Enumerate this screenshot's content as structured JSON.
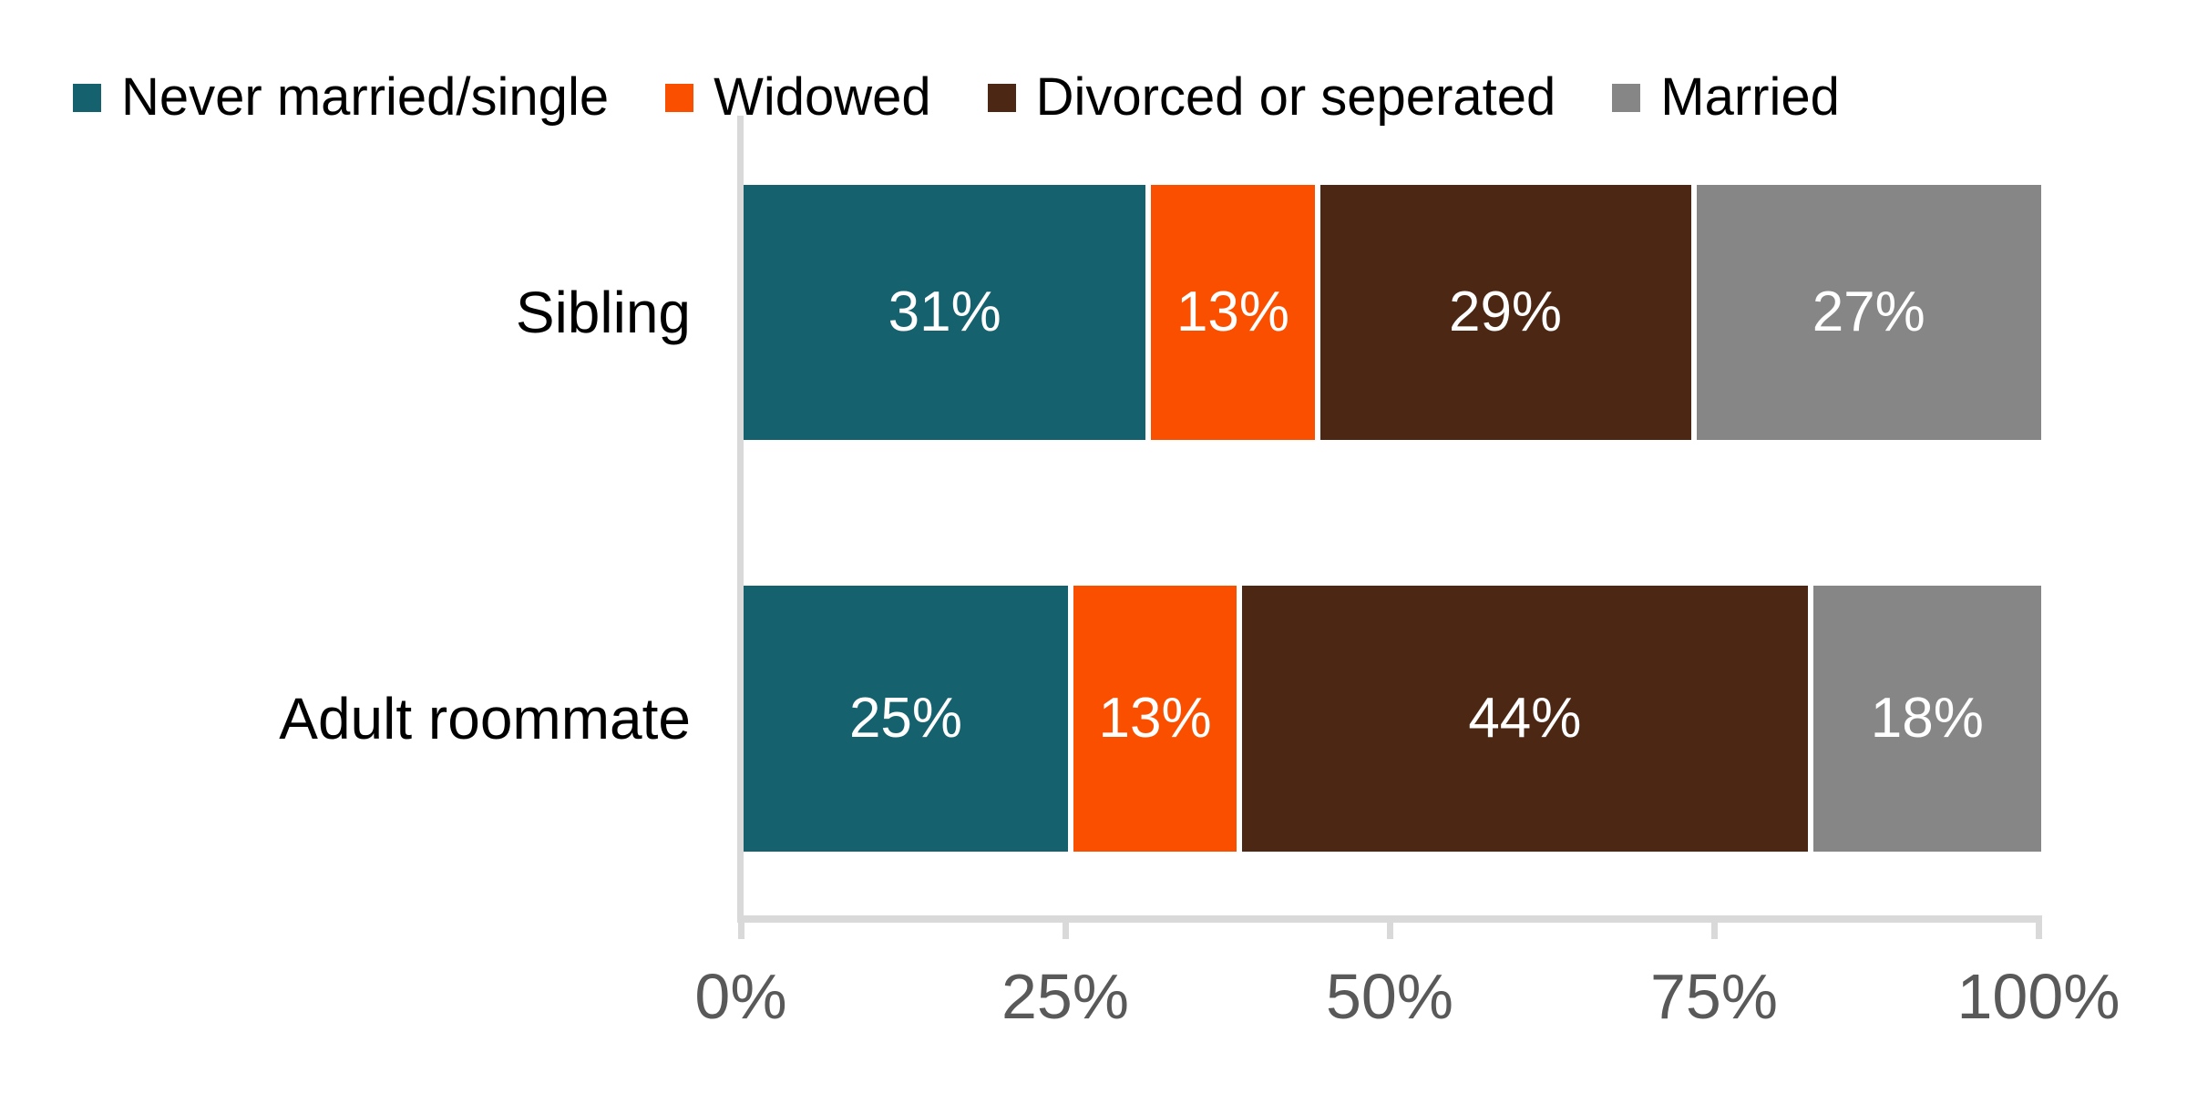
{
  "chart_data": {
    "type": "bar",
    "orientation": "horizontal-stacked",
    "title": "",
    "categories": [
      "Sibling",
      "Adult roommate"
    ],
    "series": [
      {
        "name": "Never married/single",
        "color": "#15616D",
        "values": [
          31,
          25
        ]
      },
      {
        "name": "Widowed",
        "color": "#FB4F00",
        "values": [
          13,
          13
        ]
      },
      {
        "name": "Divorced or seperated",
        "color": "#4C2814",
        "values": [
          29,
          44
        ]
      },
      {
        "name": "Married",
        "color": "#868686",
        "values": [
          27,
          18
        ]
      }
    ],
    "value_labels": [
      [
        "31%",
        "13%",
        "29%",
        "27%"
      ],
      [
        "25%",
        "13%",
        "44%",
        "18%"
      ]
    ],
    "x_ticks": [
      "0%",
      "25%",
      "50%",
      "75%",
      "100%"
    ],
    "xlim": [
      0,
      100
    ],
    "legend_position": "top",
    "grid": false
  },
  "colors": {
    "background": "#FFFFFF",
    "axis_line": "#D9D9D9",
    "tick_label": "#595959",
    "value_label": "#FFFFFF",
    "category_label": "#000000",
    "legend_label": "#000000"
  }
}
